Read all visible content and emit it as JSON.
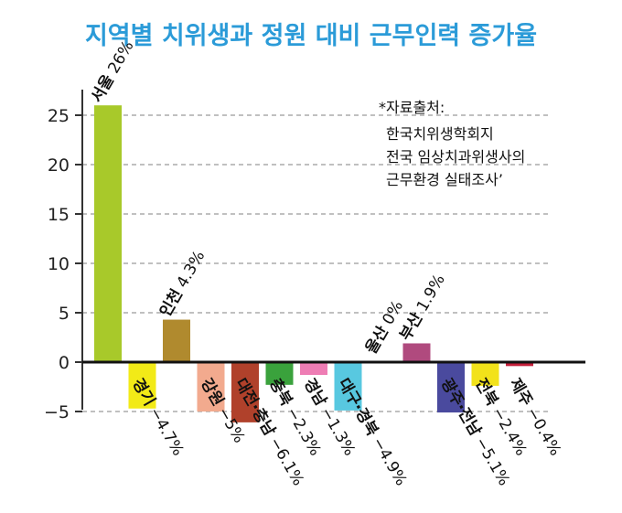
{
  "chart_data": {
    "type": "bar",
    "title": "지역별 치위생과 정원 대비 근무인력 증가율",
    "xlabel": "",
    "ylabel": "",
    "ylim": [
      -6,
      28
    ],
    "yticks": [
      25,
      20,
      15,
      10,
      5,
      0,
      -5
    ],
    "grid": "horizontal-dashed",
    "source_note": [
      "*자료출처:",
      "한국치위생학회지",
      "전국 임상치과위생사의",
      "근무환경 실태조사’"
    ],
    "categories": [
      "서울",
      "경기",
      "인천",
      "강원",
      "대전·충남",
      "충북",
      "경남",
      "대구·경북",
      "울산",
      "부산",
      "광주·전남",
      "전북",
      "제주"
    ],
    "values": [
      26,
      -4.7,
      4.3,
      -5,
      -6.1,
      -2.3,
      -1.3,
      -4.9,
      0,
      1.9,
      -5.1,
      -2.4,
      -0.4
    ],
    "value_labels": [
      "26%",
      "−4.7%",
      "4.3%",
      "−5%",
      "−6.1%",
      "−2.3%",
      "−1.3%",
      "−4.9%",
      "0%",
      "1.9%",
      "−5.1%",
      "−2.4%",
      "−0.4%"
    ],
    "colors": [
      "#a8c92a",
      "#f2ea17",
      "#b08a2e",
      "#f2aa8e",
      "#b0412b",
      "#3aa23c",
      "#ee7db4",
      "#58c8e0",
      "#cccccc",
      "#b04a7e",
      "#4a4a9e",
      "#f2e21a",
      "#c41e3a"
    ]
  }
}
